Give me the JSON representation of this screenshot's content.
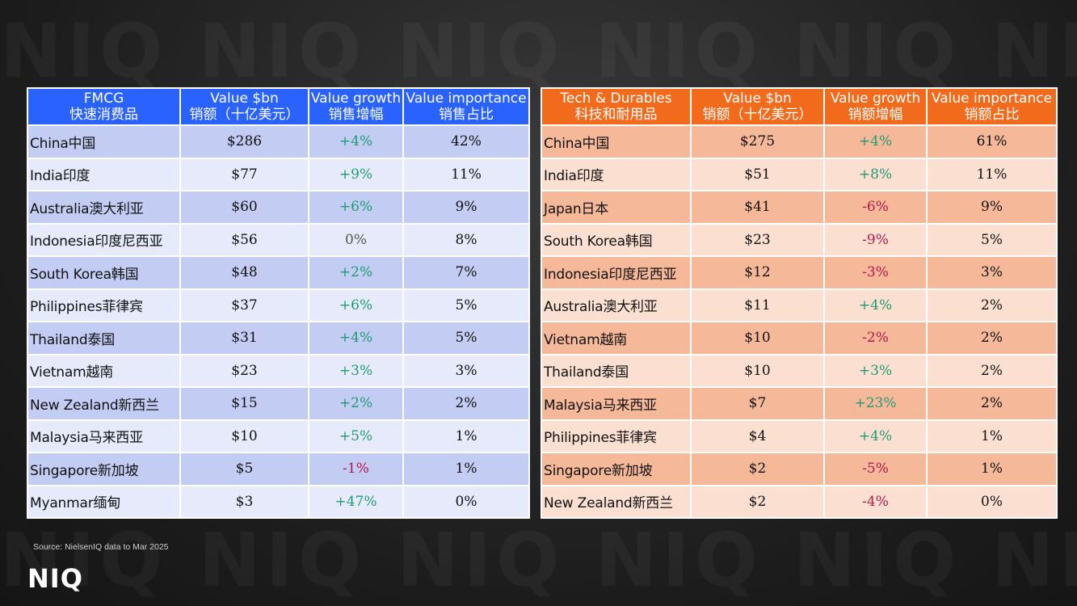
{
  "watermark": "NIQ  NIQ  NIQ  NIQ  NIQ  NIQ",
  "fmcg": {
    "headers": [
      {
        "en": "FMCG",
        "zh": "快速消费品"
      },
      {
        "en": "Value $bn",
        "zh": "销额（十亿美元）"
      },
      {
        "en": "Value growth",
        "zh": "销售增幅"
      },
      {
        "en": "Value importance",
        "zh": "销售占比"
      }
    ],
    "rows": [
      {
        "country": "China中国",
        "value": "$286",
        "growth": "+4%",
        "importance": "42%"
      },
      {
        "country": "India印度",
        "value": "$77",
        "growth": "+9%",
        "importance": "11%"
      },
      {
        "country": "Australia澳大利亚",
        "value": "$60",
        "growth": "+6%",
        "importance": "9%"
      },
      {
        "country": "Indonesia印度尼西亚",
        "value": "$56",
        "growth": "0%",
        "importance": "8%"
      },
      {
        "country": "South Korea韩国",
        "value": "$48",
        "growth": "+2%",
        "importance": "7%"
      },
      {
        "country": "Philippines菲律宾",
        "value": "$37",
        "growth": "+6%",
        "importance": "5%"
      },
      {
        "country": "Thailand泰国",
        "value": "$31",
        "growth": "+4%",
        "importance": "5%"
      },
      {
        "country": "Vietnam越南",
        "value": "$23",
        "growth": "+3%",
        "importance": "3%"
      },
      {
        "country": "New Zealand新西兰",
        "value": "$15",
        "growth": "+2%",
        "importance": "2%"
      },
      {
        "country": "Malaysia马来西亚",
        "value": "$10",
        "growth": "+5%",
        "importance": "1%"
      },
      {
        "country": "Singapore新加坡",
        "value": "$5",
        "growth": "-1%",
        "importance": "1%"
      },
      {
        "country": "Myanmar缅甸",
        "value": "$3",
        "growth": "+47%",
        "importance": "0%"
      }
    ]
  },
  "tech": {
    "headers": [
      {
        "en": "Tech & Durables",
        "zh": "科技和耐用品"
      },
      {
        "en": "Value $bn",
        "zh": "销额（十亿美元）"
      },
      {
        "en": "Value growth",
        "zh": "销额增幅"
      },
      {
        "en": "Value importance",
        "zh": "销额占比"
      }
    ],
    "rows": [
      {
        "country": "China中国",
        "value": "$275",
        "growth": "+4%",
        "importance": "61%"
      },
      {
        "country": "India印度",
        "value": "$51",
        "growth": "+8%",
        "importance": "11%"
      },
      {
        "country": "Japan日本",
        "value": "$41",
        "growth": "-6%",
        "importance": "9%"
      },
      {
        "country": "South Korea韩国",
        "value": "$23",
        "growth": "-9%",
        "importance": "5%"
      },
      {
        "country": "Indonesia印度尼西亚",
        "value": "$12",
        "growth": "-3%",
        "importance": "3%"
      },
      {
        "country": "Australia澳大利亚",
        "value": "$11",
        "growth": "+4%",
        "importance": "2%"
      },
      {
        "country": "Vietnam越南",
        "value": "$10",
        "growth": "-2%",
        "importance": "2%"
      },
      {
        "country": "Thailand泰国",
        "value": "$10",
        "growth": "+3%",
        "importance": "2%"
      },
      {
        "country": "Malaysia马来西亚",
        "value": "$7",
        "growth": "+23%",
        "importance": "2%"
      },
      {
        "country": "Philippines菲律宾",
        "value": "$4",
        "growth": "+4%",
        "importance": "1%"
      },
      {
        "country": "Singapore新加坡",
        "value": "$2",
        "growth": "-5%",
        "importance": "1%"
      },
      {
        "country": "New Zealand新西兰",
        "value": "$2",
        "growth": "-4%",
        "importance": "0%"
      }
    ]
  },
  "colors": {
    "fmcg_header": "#2962ff",
    "tech_header": "#f26a1b",
    "positive": "#1f9b73",
    "negative": "#b5174b"
  },
  "source": "Source: NielsenIQ data to Mar 2025",
  "logo": "NIQ"
}
